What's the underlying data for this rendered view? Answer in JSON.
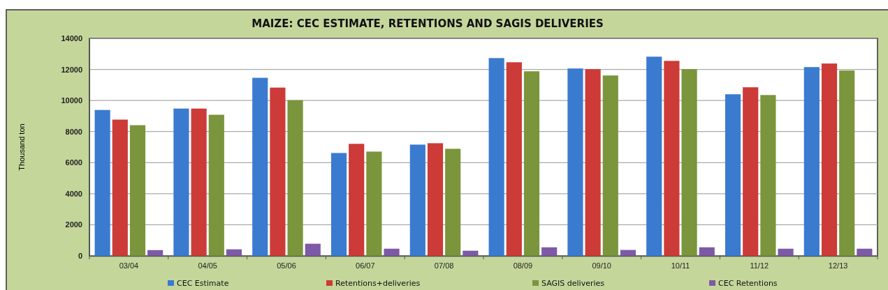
{
  "chart_data": {
    "type": "bar",
    "title": "MAIZE: CEC ESTIMATE, RETENTIONS AND SAGIS DELIVERIES",
    "ylabel": "Thousand ton",
    "categories": [
      "03/04",
      "04/05",
      "05/06",
      "06/07",
      "07/08",
      "08/09",
      "09/10",
      "10/11",
      "11/12",
      "12/13"
    ],
    "series": [
      {
        "name": "CEC Estimate",
        "color": "#3a7bd0",
        "values": [
          9390,
          9480,
          11460,
          6620,
          7160,
          12730,
          12060,
          12820,
          10400,
          12150
        ]
      },
      {
        "name": "Retentions+deliveries",
        "color": "#cc3b38",
        "values": [
          8770,
          9480,
          10830,
          7210,
          7250,
          12460,
          12020,
          12550,
          10850,
          12380
        ]
      },
      {
        "name": "SAGIS deliveries",
        "color": "#7a953b",
        "values": [
          8410,
          9080,
          10020,
          6710,
          6890,
          11880,
          11610,
          12020,
          10350,
          11930
        ]
      },
      {
        "name": "CEC Retentions",
        "color": "#7d5aa6",
        "values": [
          370,
          420,
          780,
          460,
          330,
          550,
          380,
          550,
          460,
          460
        ]
      }
    ],
    "ylim": [
      0,
      14000
    ],
    "yticks": [
      0,
      2000,
      4000,
      6000,
      8000,
      10000,
      12000,
      14000
    ],
    "grid": "y",
    "legend": "bottom"
  }
}
